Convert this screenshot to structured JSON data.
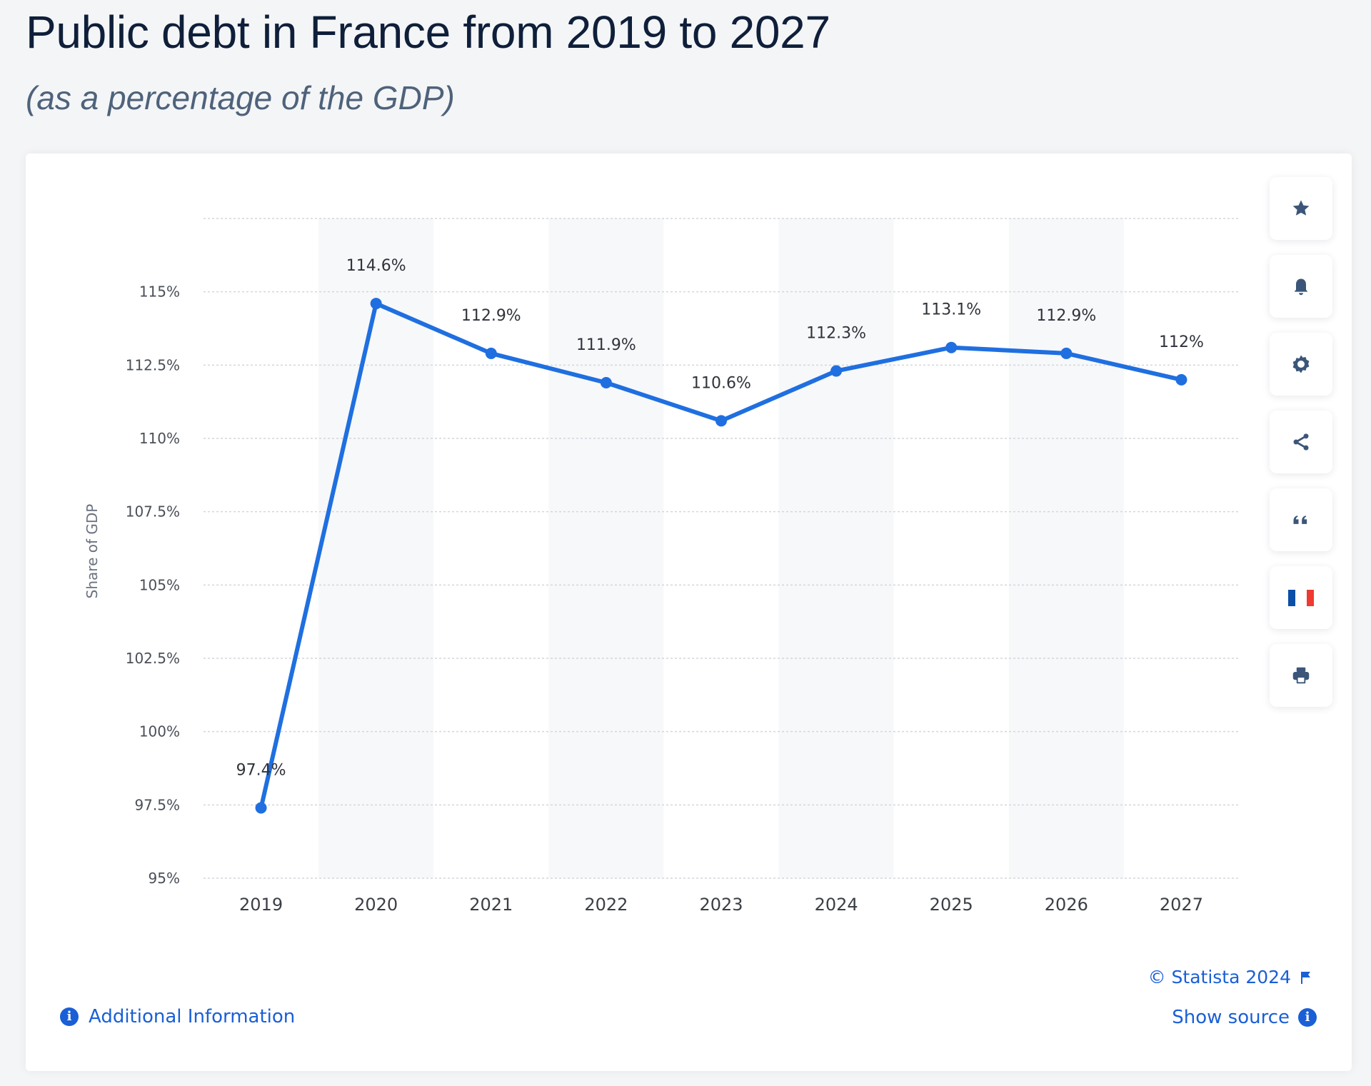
{
  "header": {
    "title": "Public debt in France from 2019 to 2027",
    "subtitle": "(as a percentage of the GDP)"
  },
  "toolbar": {
    "buttons": [
      {
        "name": "favorite-button",
        "icon": "star-icon"
      },
      {
        "name": "notification-button",
        "icon": "bell-icon"
      },
      {
        "name": "settings-button",
        "icon": "gear-icon"
      },
      {
        "name": "share-button",
        "icon": "share-icon"
      },
      {
        "name": "cite-button",
        "icon": "quote-icon"
      },
      {
        "name": "language-button",
        "icon": "france-flag-icon"
      },
      {
        "name": "print-button",
        "icon": "printer-icon"
      }
    ]
  },
  "footer": {
    "additional_info": "Additional Information",
    "copyright": "© Statista 2024",
    "show_source": "Show source",
    "info_glyph": "i"
  },
  "colors": {
    "line": "#1f6fe0",
    "band": "#f7f8fa",
    "grid": "#d3d6db",
    "icon": "#3b5679",
    "link": "#1a5fd6",
    "flag_blue": "#0a4fa8",
    "flag_red": "#ee3a30"
  },
  "chart_data": {
    "type": "line",
    "title": "Public debt in France from 2019 to 2027",
    "subtitle": "(as a percentage of the GDP)",
    "xlabel": "",
    "ylabel": "Share of GDP",
    "categories": [
      "2019",
      "2020",
      "2021",
      "2022",
      "2023",
      "2024",
      "2025",
      "2026",
      "2027"
    ],
    "values": [
      97.4,
      114.6,
      112.9,
      111.9,
      110.6,
      112.3,
      113.1,
      112.9,
      112
    ],
    "data_labels": [
      "97.4%",
      "114.6%",
      "112.9%",
      "111.9%",
      "110.6%",
      "112.3%",
      "113.1%",
      "112.9%",
      "112%"
    ],
    "yticks": [
      95,
      97.5,
      100,
      102.5,
      105,
      107.5,
      110,
      112.5,
      115
    ],
    "ytick_labels": [
      "95%",
      "97.5%",
      "100%",
      "102.5%",
      "105%",
      "107.5%",
      "110%",
      "112.5%",
      "115%"
    ],
    "ylim": [
      95,
      117.5
    ],
    "grid": true,
    "legend": null
  }
}
